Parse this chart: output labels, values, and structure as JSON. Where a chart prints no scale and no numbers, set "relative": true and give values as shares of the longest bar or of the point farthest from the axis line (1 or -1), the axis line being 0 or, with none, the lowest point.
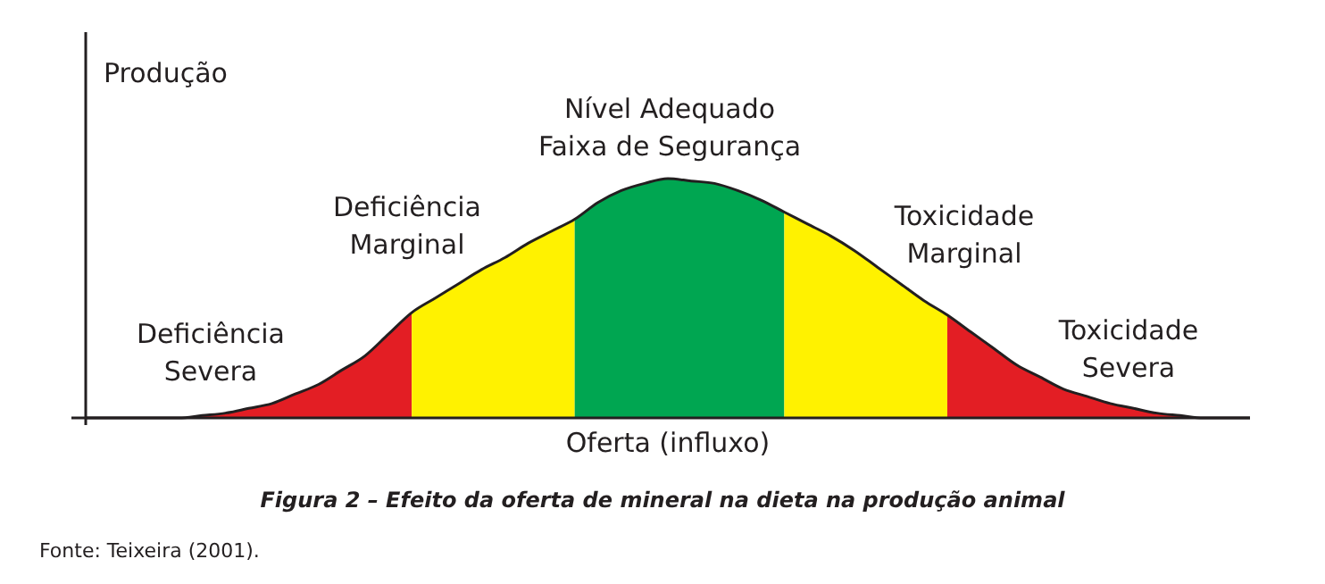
{
  "chart_data": {
    "type": "area",
    "relative": true,
    "title": "Figura 2 – Efeito da oferta de mineral na dieta na produção animal",
    "xlabel": "Oferta (influxo)",
    "ylabel": "Produção",
    "categories": [
      null,
      null,
      null,
      null,
      null,
      null,
      null,
      null,
      null,
      null,
      null,
      null,
      null,
      null,
      null,
      null,
      null,
      null,
      null,
      null,
      null,
      null,
      null,
      null,
      null,
      null,
      null,
      null,
      null,
      null,
      null,
      null,
      null,
      null,
      null,
      null,
      null,
      null,
      null,
      null,
      null,
      null,
      null,
      null,
      null,
      null,
      null,
      null,
      null,
      null,
      null
    ],
    "series": [
      {
        "color": "#e31e24",
        "values": [
          0,
          0,
          0,
          0,
          0,
          0.01,
          0.02,
          0.04,
          0.06,
          0.1,
          0.14,
          0.2,
          0.26,
          0.35,
          0.44,
          null,
          null,
          null,
          null,
          null,
          null,
          null,
          null,
          null,
          null,
          null,
          null,
          null,
          null,
          null,
          null,
          null,
          null,
          null,
          null,
          null,
          null,
          null,
          null,
          null,
          null,
          null,
          null,
          null,
          null,
          null,
          null,
          null,
          null,
          null,
          null
        ]
      },
      {
        "color": "#fff200",
        "values": [
          null,
          null,
          null,
          null,
          null,
          null,
          null,
          null,
          null,
          null,
          null,
          null,
          null,
          null,
          0.44,
          0.5,
          0.56,
          0.62,
          0.67,
          0.73,
          0.78,
          0.83,
          null,
          null,
          null,
          null,
          null,
          null,
          null,
          null,
          null,
          null,
          null,
          null,
          null,
          null,
          null,
          null,
          null,
          null,
          null,
          null,
          null,
          null,
          null,
          null,
          null,
          null,
          null,
          null,
          null
        ]
      },
      {
        "color": "#00a651",
        "values": [
          null,
          null,
          null,
          null,
          null,
          null,
          null,
          null,
          null,
          null,
          null,
          null,
          null,
          null,
          null,
          null,
          null,
          null,
          null,
          null,
          null,
          0.83,
          0.9,
          0.95,
          0.98,
          1,
          0.99,
          0.98,
          0.95,
          0.91,
          0.86,
          null,
          null,
          null,
          null,
          null,
          null,
          null,
          null,
          null,
          null,
          null,
          null,
          null,
          null,
          null,
          null,
          null,
          null,
          null,
          null
        ]
      },
      {
        "color": "#fff200",
        "values": [
          null,
          null,
          null,
          null,
          null,
          null,
          null,
          null,
          null,
          null,
          null,
          null,
          null,
          null,
          null,
          null,
          null,
          null,
          null,
          null,
          null,
          null,
          null,
          null,
          null,
          null,
          null,
          null,
          null,
          null,
          0.86,
          0.81,
          0.76,
          0.7,
          0.63,
          0.56,
          0.49,
          0.43,
          null,
          null,
          null,
          null,
          null,
          null,
          null,
          null,
          null,
          null,
          null,
          null,
          null
        ]
      },
      {
        "color": "#e31e24",
        "values": [
          null,
          null,
          null,
          null,
          null,
          null,
          null,
          null,
          null,
          null,
          null,
          null,
          null,
          null,
          null,
          null,
          null,
          null,
          null,
          null,
          null,
          null,
          null,
          null,
          null,
          null,
          null,
          null,
          null,
          null,
          null,
          null,
          null,
          null,
          null,
          null,
          null,
          0.43,
          0.36,
          0.29,
          0.22,
          0.17,
          0.12,
          0.09,
          0.06,
          0.04,
          0.02,
          0.01,
          0,
          0,
          0
        ]
      },
      {
        "type": "line",
        "color": "#231f20",
        "values": [
          0,
          0,
          0,
          0,
          0,
          0.01,
          0.02,
          0.04,
          0.06,
          0.1,
          0.14,
          0.2,
          0.26,
          0.35,
          0.44,
          0.5,
          0.56,
          0.62,
          0.67,
          0.73,
          0.78,
          0.83,
          0.9,
          0.95,
          0.98,
          1,
          0.99,
          0.98,
          0.95,
          0.91,
          0.86,
          0.81,
          0.76,
          0.7,
          0.63,
          0.56,
          0.49,
          0.43,
          0.36,
          0.29,
          0.22,
          0.17,
          0.12,
          0.09,
          0.06,
          0.04,
          0.02,
          0.01,
          0,
          0,
          0
        ]
      }
    ],
    "annotations": [
      "Deficiência\nSevera",
      "Deficiência\nMarginal",
      "Nível Adequado\nFaixa de Segurança",
      "Toxicidade\nMarginal",
      "Toxicidade\nSevera",
      "Fonte: Teixeira (2001)."
    ]
  }
}
